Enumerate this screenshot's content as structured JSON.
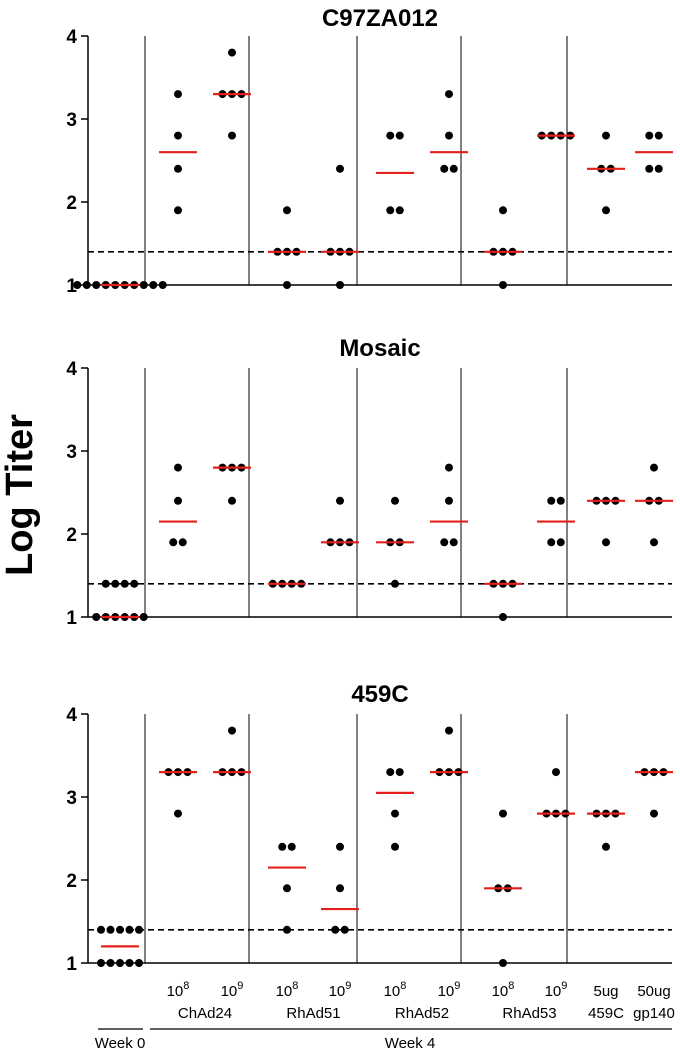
{
  "ylabel": "Log Titer",
  "groups": [
    {
      "dose_base": "",
      "dose_exp": "",
      "dose_text": "",
      "vector": ""
    },
    {
      "dose_base": "10",
      "dose_exp": "8",
      "dose_text": "",
      "vector": "ChAd24"
    },
    {
      "dose_base": "10",
      "dose_exp": "9",
      "dose_text": "",
      "vector": ""
    },
    {
      "dose_base": "10",
      "dose_exp": "8",
      "dose_text": "",
      "vector": "RhAd51"
    },
    {
      "dose_base": "10",
      "dose_exp": "9",
      "dose_text": "",
      "vector": ""
    },
    {
      "dose_base": "10",
      "dose_exp": "8",
      "dose_text": "",
      "vector": "RhAd52"
    },
    {
      "dose_base": "10",
      "dose_exp": "9",
      "dose_text": "",
      "vector": ""
    },
    {
      "dose_base": "10",
      "dose_exp": "8",
      "dose_text": "",
      "vector": "RhAd53"
    },
    {
      "dose_base": "10",
      "dose_exp": "9",
      "dose_text": "",
      "vector": ""
    },
    {
      "dose_base": "",
      "dose_exp": "",
      "dose_text": "5ug",
      "vector": "459C"
    },
    {
      "dose_base": "",
      "dose_exp": "",
      "dose_text": "50ug",
      "vector": "gp140"
    }
  ],
  "week_labels": {
    "week0": "Week 0",
    "week4": "Week 4"
  },
  "colors": {
    "points": "#000000",
    "median": "#e3201b",
    "threshold": "#000000",
    "dividers": "#000000"
  },
  "chart_data": [
    {
      "type": "scatter",
      "title": "C97ZA012",
      "ylim": [
        1,
        4
      ],
      "yticks": [
        "1",
        "2",
        "3",
        "4"
      ],
      "threshold": 1.4,
      "groups": [
        {
          "values": [
            1,
            1,
            1,
            1,
            1,
            1,
            1,
            1,
            1,
            1
          ],
          "median": 1
        },
        {
          "values": [
            3.3,
            2.8,
            2.4,
            1.9
          ],
          "median": 2.6
        },
        {
          "values": [
            3.8,
            3.3,
            3.3,
            3.3,
            2.8
          ],
          "median": 3.3
        },
        {
          "values": [
            1.9,
            1.4,
            1.4,
            1.4,
            1.0
          ],
          "median": 1.4
        },
        {
          "values": [
            2.4,
            1.4,
            1.4,
            1.4,
            1.0
          ],
          "median": 1.4
        },
        {
          "values": [
            2.8,
            2.8,
            1.9,
            1.9
          ],
          "median": 2.35
        },
        {
          "values": [
            3.3,
            2.8,
            2.4,
            2.4
          ],
          "median": 2.6
        },
        {
          "values": [
            1.9,
            1.4,
            1.4,
            1.4,
            1.0
          ],
          "median": 1.4
        },
        {
          "values": [
            2.8,
            2.8,
            2.8,
            2.8
          ],
          "median": 2.8
        },
        {
          "values": [
            2.8,
            2.4,
            2.4,
            1.9
          ],
          "median": 2.4
        },
        {
          "values": [
            2.8,
            2.8,
            2.4,
            2.4
          ],
          "median": 2.6
        }
      ]
    },
    {
      "type": "scatter",
      "title": "Mosaic",
      "ylim": [
        1,
        4
      ],
      "yticks": [
        "1",
        "2",
        "3",
        "4"
      ],
      "threshold": 1.4,
      "groups": [
        {
          "values": [
            1.4,
            1.4,
            1.4,
            1.4,
            1,
            1,
            1,
            1,
            1,
            1
          ],
          "median": 1
        },
        {
          "values": [
            2.8,
            2.4,
            1.9,
            1.9
          ],
          "median": 2.15
        },
        {
          "values": [
            2.8,
            2.8,
            2.8,
            2.4
          ],
          "median": 2.8
        },
        {
          "values": [
            1.4,
            1.4,
            1.4,
            1.4
          ],
          "median": 1.4
        },
        {
          "values": [
            2.4,
            1.9,
            1.9,
            1.9
          ],
          "median": 1.9
        },
        {
          "values": [
            2.4,
            1.9,
            1.9,
            1.4
          ],
          "median": 1.9
        },
        {
          "values": [
            2.8,
            2.4,
            1.9,
            1.9
          ],
          "median": 2.15
        },
        {
          "values": [
            1.4,
            1.4,
            1.4,
            1.0
          ],
          "median": 1.4
        },
        {
          "values": [
            2.4,
            2.4,
            1.9,
            1.9
          ],
          "median": 2.15
        },
        {
          "values": [
            2.4,
            2.4,
            2.4,
            1.9
          ],
          "median": 2.4
        },
        {
          "values": [
            2.8,
            2.4,
            2.4,
            1.9
          ],
          "median": 2.4
        }
      ]
    },
    {
      "type": "scatter",
      "title": "459C",
      "ylim": [
        1,
        4
      ],
      "yticks": [
        "1",
        "2",
        "3",
        "4"
      ],
      "threshold": 1.4,
      "groups": [
        {
          "values": [
            1.4,
            1.4,
            1.4,
            1.4,
            1.4,
            1,
            1,
            1,
            1,
            1
          ],
          "median": 1.2
        },
        {
          "values": [
            3.3,
            3.3,
            3.3,
            2.8
          ],
          "median": 3.3
        },
        {
          "values": [
            3.8,
            3.3,
            3.3,
            3.3
          ],
          "median": 3.3
        },
        {
          "values": [
            2.4,
            2.4,
            1.9,
            1.4
          ],
          "median": 2.15
        },
        {
          "values": [
            2.4,
            1.9,
            1.4,
            1.4
          ],
          "median": 1.65
        },
        {
          "values": [
            3.3,
            3.3,
            2.8,
            2.4
          ],
          "median": 3.05
        },
        {
          "values": [
            3.8,
            3.3,
            3.3,
            3.3
          ],
          "median": 3.3
        },
        {
          "values": [
            2.8,
            1.9,
            1.9,
            1.0
          ],
          "median": 1.9
        },
        {
          "values": [
            3.3,
            2.8,
            2.8,
            2.8
          ],
          "median": 2.8
        },
        {
          "values": [
            2.8,
            2.8,
            2.8,
            2.4
          ],
          "median": 2.8
        },
        {
          "values": [
            3.3,
            3.3,
            3.3,
            2.8
          ],
          "median": 3.3
        }
      ]
    }
  ]
}
